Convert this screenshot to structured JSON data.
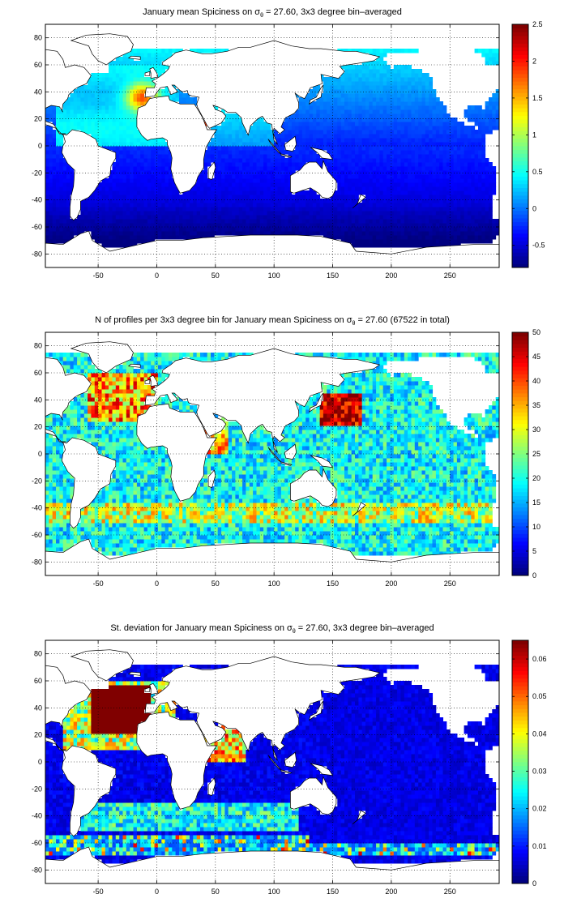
{
  "figure": {
    "background": "#ffffff",
    "land_color": "#ffffff",
    "coast_color": "#000000",
    "colormap": "jet"
  },
  "chart_data": [
    {
      "type": "heatmap",
      "title_pre": "January mean Spiciness on ",
      "title_sigma": "σ",
      "title_sub": "θ",
      "title_post": " = 27.60, 3x3 degree bin–averaged",
      "xlabel": "",
      "ylabel": "",
      "xlim": [
        -95,
        292
      ],
      "ylim": [
        -90,
        90
      ],
      "x_ticks": [
        -50,
        0,
        50,
        100,
        150,
        200,
        250
      ],
      "y_ticks": [
        80,
        60,
        40,
        20,
        0,
        -20,
        -40,
        -60,
        -80
      ],
      "grid": "dotted",
      "clim": [
        -0.8,
        2.5
      ],
      "colorbar_ticks": [
        -0.5,
        0,
        0.5,
        1,
        1.5,
        2,
        2.5
      ],
      "colorbar_labels": [
        "-0.5",
        "0",
        "0.5",
        "1",
        "1.5",
        "2",
        "2.5"
      ],
      "bin_size_deg": 3,
      "field": "mean_spiciness"
    },
    {
      "type": "heatmap",
      "title_pre": "N of profiles per 3x3 degree bin for January mean Spiciness on ",
      "title_sigma": "σ",
      "title_sub": "θ",
      "title_post": " = 27.60 (67522 in total)",
      "xlabel": "",
      "ylabel": "",
      "xlim": [
        -95,
        292
      ],
      "ylim": [
        -90,
        90
      ],
      "x_ticks": [
        -50,
        0,
        50,
        100,
        150,
        200,
        250
      ],
      "y_ticks": [
        80,
        60,
        40,
        20,
        0,
        -20,
        -40,
        -60,
        -80
      ],
      "grid": "dotted",
      "clim": [
        0,
        50
      ],
      "colorbar_ticks": [
        0,
        5,
        10,
        15,
        20,
        25,
        30,
        35,
        40,
        45,
        50
      ],
      "colorbar_labels": [
        "0",
        "5",
        "10",
        "15",
        "20",
        "25",
        "30",
        "35",
        "40",
        "45",
        "50"
      ],
      "bin_size_deg": 3,
      "total_profiles": 67522,
      "field": "profile_count"
    },
    {
      "type": "heatmap",
      "title_pre": "St. deviation for January mean Spiciness on ",
      "title_sigma": "σ",
      "title_sub": "θ",
      "title_post": " = 27.60, 3x3 degree bin–averaged",
      "xlabel": "",
      "ylabel": "",
      "xlim": [
        -95,
        292
      ],
      "ylim": [
        -90,
        90
      ],
      "x_ticks": [
        -50,
        0,
        50,
        100,
        150,
        200,
        250
      ],
      "y_ticks": [
        80,
        60,
        40,
        20,
        0,
        -20,
        -40,
        -60,
        -80
      ],
      "grid": "dotted",
      "clim": [
        0,
        0.065
      ],
      "colorbar_ticks": [
        0,
        0.01,
        0.02,
        0.03,
        0.04,
        0.05,
        0.06
      ],
      "colorbar_labels": [
        "0",
        "0.01",
        "0.02",
        "0.03",
        "0.04",
        "0.05",
        "0.06"
      ],
      "bin_size_deg": 3,
      "field": "std_spiciness"
    }
  ]
}
